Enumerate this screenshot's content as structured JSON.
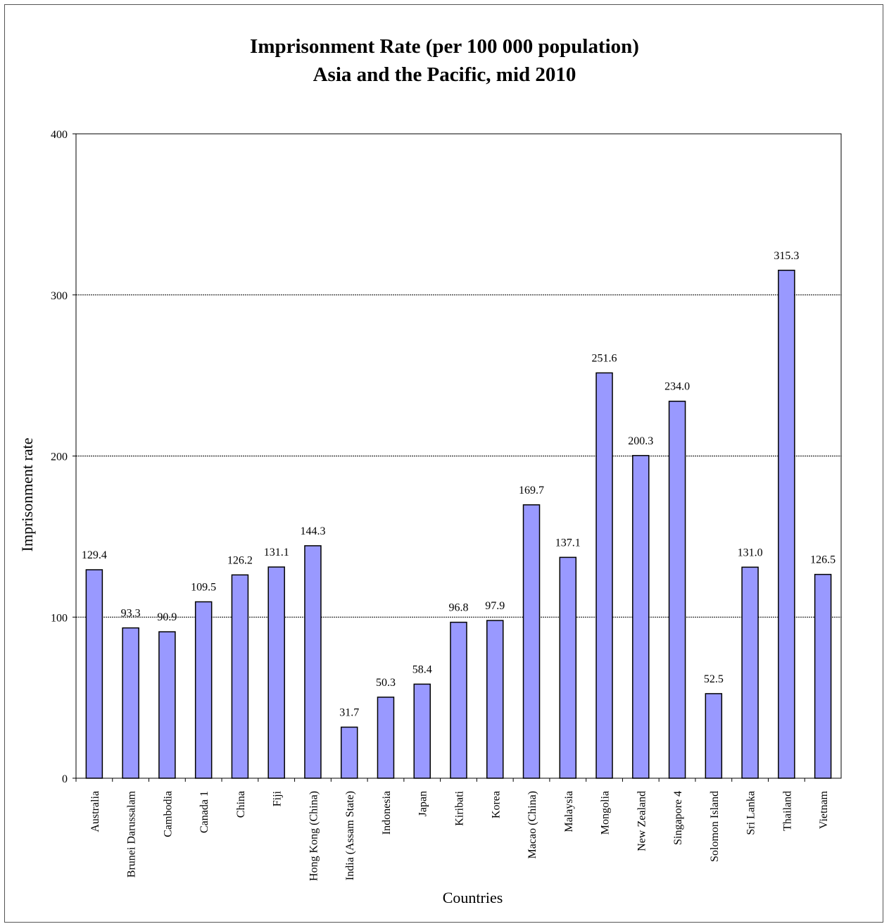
{
  "chart_data": {
    "type": "bar",
    "title": "Imprisonment Rate (per 100 000 population)",
    "subtitle": "Asia and the Pacific, mid 2010",
    "xlabel": "Countries",
    "ylabel": "Imprisonment rate",
    "ylim": [
      0,
      400
    ],
    "yticks": [
      0,
      100,
      200,
      300,
      400
    ],
    "grid": true,
    "bar_color": "#9999FF",
    "categories": [
      "Australia",
      "Brunei Darussalam",
      "Cambodia",
      "Canada 1",
      "China",
      "Fiji",
      "Hong Kong (China)",
      "India (Assam State)",
      "Indonesia",
      "Japan",
      "Kiribati",
      "Korea",
      "Macao (China)",
      "Malaysia",
      "Mongolia",
      "New Zealand",
      "Singapore 4",
      "Solomon Island",
      "Sri Lanka",
      "Thailand",
      "Vietnam"
    ],
    "values": [
      129.4,
      93.3,
      90.9,
      109.5,
      126.2,
      131.1,
      144.3,
      31.7,
      50.3,
      58.4,
      96.8,
      97.9,
      169.7,
      137.1,
      251.6,
      200.3,
      234.0,
      52.5,
      131.0,
      315.3,
      126.5
    ],
    "labels": [
      "129.4",
      "93.3",
      "90.9",
      "109.5",
      "126.2",
      "131.1",
      "144.3",
      "31.7",
      "50.3",
      "58.4",
      "96.8",
      "97.9",
      "169.7",
      "137.1",
      "251.6",
      "200.3",
      "234.0",
      "52.5",
      "131.0",
      "315.3",
      "126.5"
    ]
  }
}
